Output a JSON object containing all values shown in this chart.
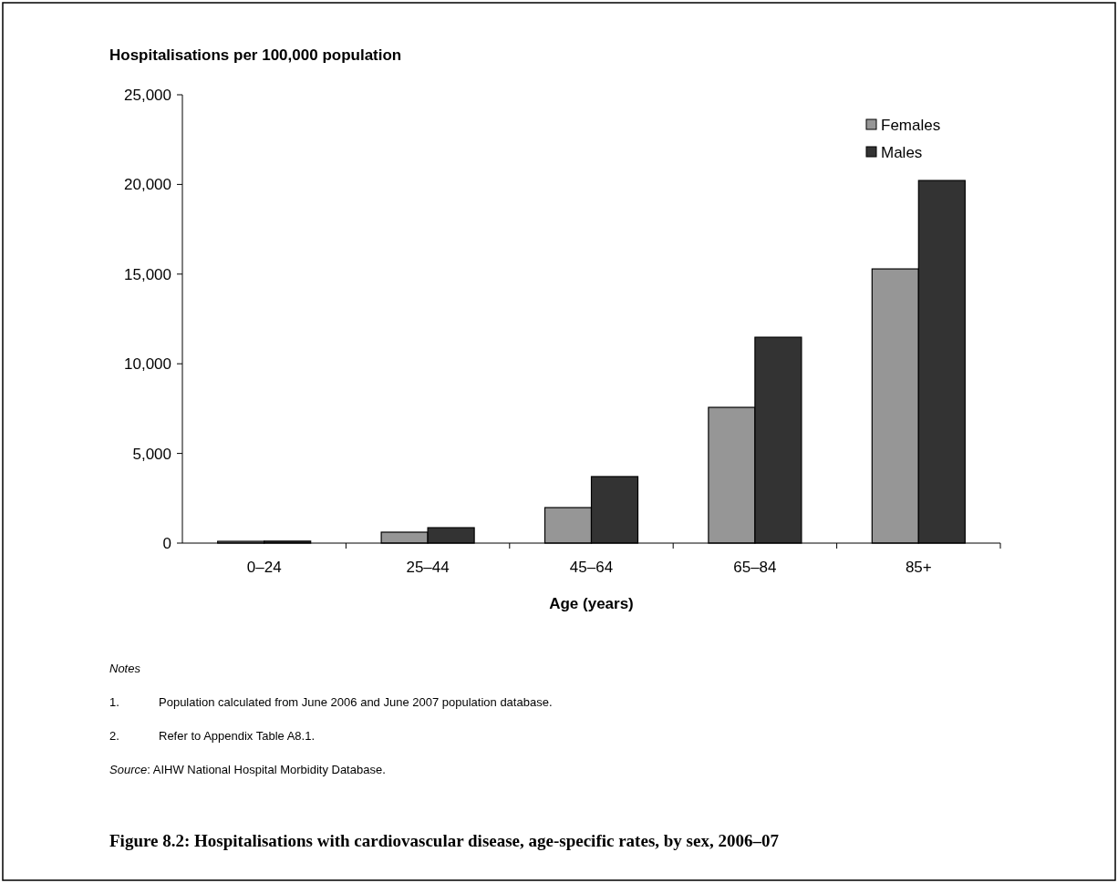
{
  "chart_data": {
    "type": "bar",
    "title": "Figure 8.2: Hospitalisations with cardiovascular disease, age-specific rates, by sex, 2006–07",
    "ylabel": "Hospitalisations per 100,000 population",
    "xlabel": "Age (years)",
    "categories": [
      "0–24",
      "25–44",
      "45–64",
      "65–84",
      "85+"
    ],
    "series": [
      {
        "name": "Females",
        "color": "#969696",
        "values": [
          100,
          610,
          1980,
          7570,
          15290
        ]
      },
      {
        "name": "Males",
        "color": "#333333",
        "values": [
          110,
          860,
          3710,
          11480,
          20220
        ]
      }
    ],
    "ylim": [
      0,
      25000
    ],
    "yticks": [
      {
        "value": 0,
        "label": "0"
      },
      {
        "value": 5000,
        "label": "5,000"
      },
      {
        "value": 10000,
        "label": "10,000"
      },
      {
        "value": 15000,
        "label": "15,000"
      },
      {
        "value": 20000,
        "label": "20,000"
      },
      {
        "value": 25000,
        "label": "25,000"
      }
    ],
    "grid": false,
    "legend": "top right",
    "annotations": [
      "Notes",
      "1.\tPopulation calculated from June 2006 and June 2007 population database.",
      "2.\tRefer to Appendix Table A8.1.",
      "Source: AIHW National Hospital Morbidity Database."
    ]
  }
}
